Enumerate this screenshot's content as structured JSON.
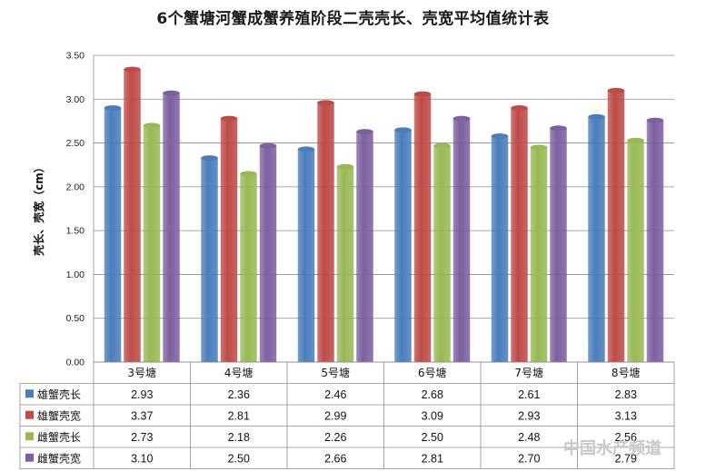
{
  "chart_data": {
    "type": "bar",
    "title": "6个蟹塘河蟹成蟹养殖阶段二壳壳长、壳宽平均值统计表",
    "ylabel": "壳长、壳宽（cm）",
    "xlabel": "",
    "ylim": [
      0,
      3.5
    ],
    "yticks": [
      "0.00",
      "0.50",
      "1.00",
      "1.50",
      "2.00",
      "2.50",
      "3.00",
      "3.50"
    ],
    "grid": true,
    "legend_placement": "data-table",
    "categories": [
      "3号塘",
      "4号塘",
      "5号塘",
      "6号塘",
      "7号塘",
      "8号塘"
    ],
    "series": [
      {
        "name": "雄蟹壳长",
        "color": "#4a7ebb",
        "values": [
          2.93,
          2.36,
          2.46,
          2.68,
          2.61,
          2.83
        ],
        "labels": [
          "2.93",
          "2.36",
          "2.46",
          "2.68",
          "2.61",
          "2.83"
        ]
      },
      {
        "name": "雄蟹壳宽",
        "color": "#be4b48",
        "values": [
          3.37,
          2.81,
          2.99,
          3.09,
          2.93,
          3.13
        ],
        "labels": [
          "3.37",
          "2.81",
          "2.99",
          "3.09",
          "2.93",
          "3.13"
        ]
      },
      {
        "name": "雌蟹壳长",
        "color": "#98b954",
        "values": [
          2.73,
          2.18,
          2.26,
          2.5,
          2.48,
          2.56
        ],
        "labels": [
          "2.73",
          "2.18",
          "2.26",
          "2.50",
          "2.48",
          "2.56"
        ]
      },
      {
        "name": "雌蟹壳宽",
        "color": "#7d60a0",
        "values": [
          3.1,
          2.5,
          2.66,
          2.81,
          2.7,
          2.79
        ],
        "labels": [
          "3.10",
          "2.50",
          "2.66",
          "2.81",
          "2.70",
          "2.79"
        ]
      }
    ]
  },
  "watermark": {
    "text": "中国水产频道"
  }
}
